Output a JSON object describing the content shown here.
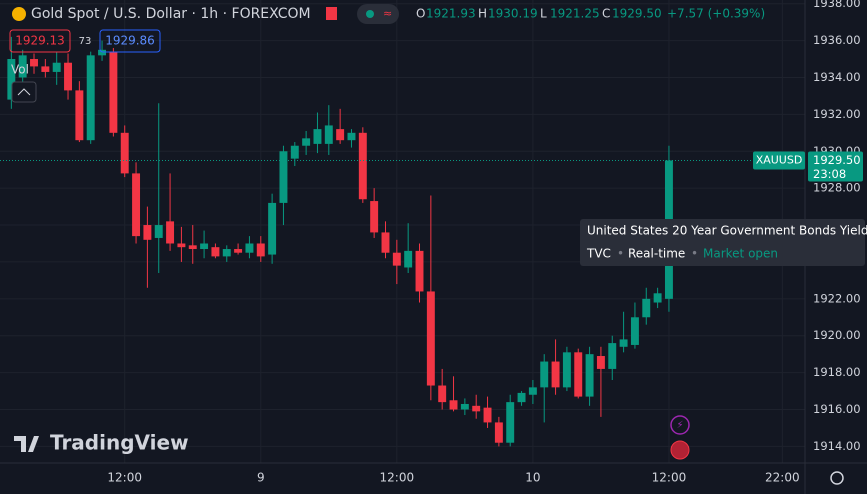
{
  "header": {
    "title": "Gold Spot / U.S. Dollar · 1h · FOREXCOM",
    "ohlc": [
      {
        "key": "O",
        "value": "1921.93"
      },
      {
        "key": "H",
        "value": "1930.19"
      },
      {
        "key": "L",
        "value": "1921.25"
      },
      {
        "key": "C",
        "value": "1929.50"
      }
    ],
    "change": "+7.57 (+0.39%)",
    "bid": "1929.13",
    "spread": "73",
    "ask": "1929.86",
    "volume_label": "Vol"
  },
  "tooltip": {
    "title": "United States 20 Year Government Bonds Yield",
    "source": "TVC",
    "feed": "Real-time",
    "status": "Market open"
  },
  "logo": "TradingView",
  "chart_data": {
    "type": "candlestick",
    "symbol": "XAUUSD",
    "last_price": {
      "value": 1929.5,
      "label": "1929.50"
    },
    "countdown": "23:08",
    "up_color": "#089981",
    "down_color": "#f23645",
    "open": [
      1932.8,
      1934.0,
      1935.0,
      1934.6,
      1934.3,
      1934.8,
      1933.3,
      1930.6,
      1935.2,
      1935.4,
      1931.0,
      1928.8,
      1926.0,
      1925.3,
      1926.2,
      1925.0,
      1924.9,
      1924.7,
      1924.8,
      1924.3,
      1924.7,
      1924.5,
      1925.0,
      1924.4,
      1927.2,
      1929.6,
      1930.3,
      1930.4,
      1930.4,
      1931.2,
      1930.6,
      1931.0,
      1927.3,
      1925.6,
      1924.5,
      1923.7,
      1924.6,
      1922.4,
      1917.3,
      1916.5,
      1916.0,
      1916.2,
      1916.1,
      1915.3,
      1914.2,
      1916.4,
      1916.8,
      1917.2,
      1918.6,
      1917.2,
      1919.1,
      1916.7,
      1918.9,
      1918.2,
      1919.4,
      1919.5,
      1921.0,
      1921.8,
      1922.0
    ],
    "high": [
      1936.2,
      1935.5,
      1935.3,
      1935.0,
      1935.4,
      1935.3,
      1933.8,
      1935.4,
      1936.0,
      1935.6,
      1931.4,
      1929.4,
      1927.0,
      1932.6,
      1928.8,
      1925.9,
      1926.0,
      1925.7,
      1925.0,
      1924.9,
      1925.0,
      1925.4,
      1925.4,
      1927.7,
      1930.3,
      1930.5,
      1931.1,
      1932.1,
      1932.5,
      1932.3,
      1931.2,
      1931.3,
      1928.0,
      1926.2,
      1925.2,
      1926.1,
      1925.0,
      1927.6,
      1918.2,
      1917.8,
      1916.6,
      1916.8,
      1916.7,
      1915.6,
      1916.8,
      1917.0,
      1917.6,
      1919.0,
      1919.8,
      1919.4,
      1919.3,
      1919.4,
      1919.4,
      1920.0,
      1921.3,
      1921.8,
      1922.6,
      1922.6,
      1930.3
    ],
    "low": [
      1932.3,
      1933.5,
      1934.2,
      1934.0,
      1933.6,
      1932.8,
      1930.5,
      1930.4,
      1934.9,
      1930.8,
      1928.6,
      1925.0,
      1922.6,
      1923.4,
      1924.6,
      1924.0,
      1923.9,
      1924.2,
      1924.2,
      1924.0,
      1924.4,
      1924.2,
      1924.0,
      1923.9,
      1926.0,
      1929.2,
      1929.8,
      1929.9,
      1929.8,
      1930.4,
      1930.2,
      1927.2,
      1925.3,
      1924.2,
      1922.8,
      1923.4,
      1921.8,
      1916.5,
      1916.0,
      1915.9,
      1915.7,
      1915.5,
      1915.0,
      1914.0,
      1914.0,
      1916.2,
      1916.3,
      1915.3,
      1916.8,
      1917.0,
      1916.6,
      1916.2,
      1915.6,
      1917.6,
      1919.1,
      1919.3,
      1920.6,
      1921.5,
      1921.3
    ],
    "close": [
      1935.0,
      1935.2,
      1934.6,
      1934.3,
      1934.8,
      1933.3,
      1930.6,
      1935.2,
      1935.5,
      1931.0,
      1928.8,
      1925.4,
      1925.2,
      1926.0,
      1925.0,
      1924.8,
      1924.7,
      1925.0,
      1924.3,
      1924.7,
      1924.5,
      1925.0,
      1924.3,
      1927.2,
      1930.0,
      1930.3,
      1930.7,
      1931.2,
      1931.4,
      1930.6,
      1931.0,
      1927.4,
      1925.6,
      1924.5,
      1923.8,
      1924.6,
      1922.4,
      1917.3,
      1916.4,
      1916.0,
      1916.3,
      1915.9,
      1915.3,
      1914.2,
      1916.4,
      1916.9,
      1917.2,
      1918.6,
      1917.2,
      1919.1,
      1916.7,
      1919.0,
      1918.2,
      1919.6,
      1919.8,
      1921.0,
      1922.0,
      1922.3,
      1929.5
    ],
    "ylim": [
      1913.1,
      1938.2
    ],
    "yticks": [
      {
        "value": 1914,
        "label": "1914.00"
      },
      {
        "value": 1916,
        "label": "1916.00"
      },
      {
        "value": 1918,
        "label": "1918.00"
      },
      {
        "value": 1920,
        "label": "1920.00"
      },
      {
        "value": 1922,
        "label": "1922.00"
      },
      {
        "value": 1924,
        "label": "1924.00"
      },
      {
        "value": 1926,
        "label": "1926.00"
      },
      {
        "value": 1928,
        "label": "1928.00"
      },
      {
        "value": 1930,
        "label": "1930.00"
      },
      {
        "value": 1932,
        "label": "1932.00"
      },
      {
        "value": 1934,
        "label": "1934.00"
      },
      {
        "value": 1936,
        "label": "1936.00"
      },
      {
        "value": 1938,
        "label": "1938.00"
      }
    ],
    "xlim": [
      -1,
      70
    ],
    "xticks": [
      {
        "value": 10,
        "label": "12:00"
      },
      {
        "value": 22,
        "label": "9"
      },
      {
        "value": 34,
        "label": "12:00"
      },
      {
        "value": 46,
        "label": "10"
      },
      {
        "value": 58,
        "label": "12:00"
      },
      {
        "value": 68,
        "label": "22:00"
      }
    ],
    "grid": true
  }
}
